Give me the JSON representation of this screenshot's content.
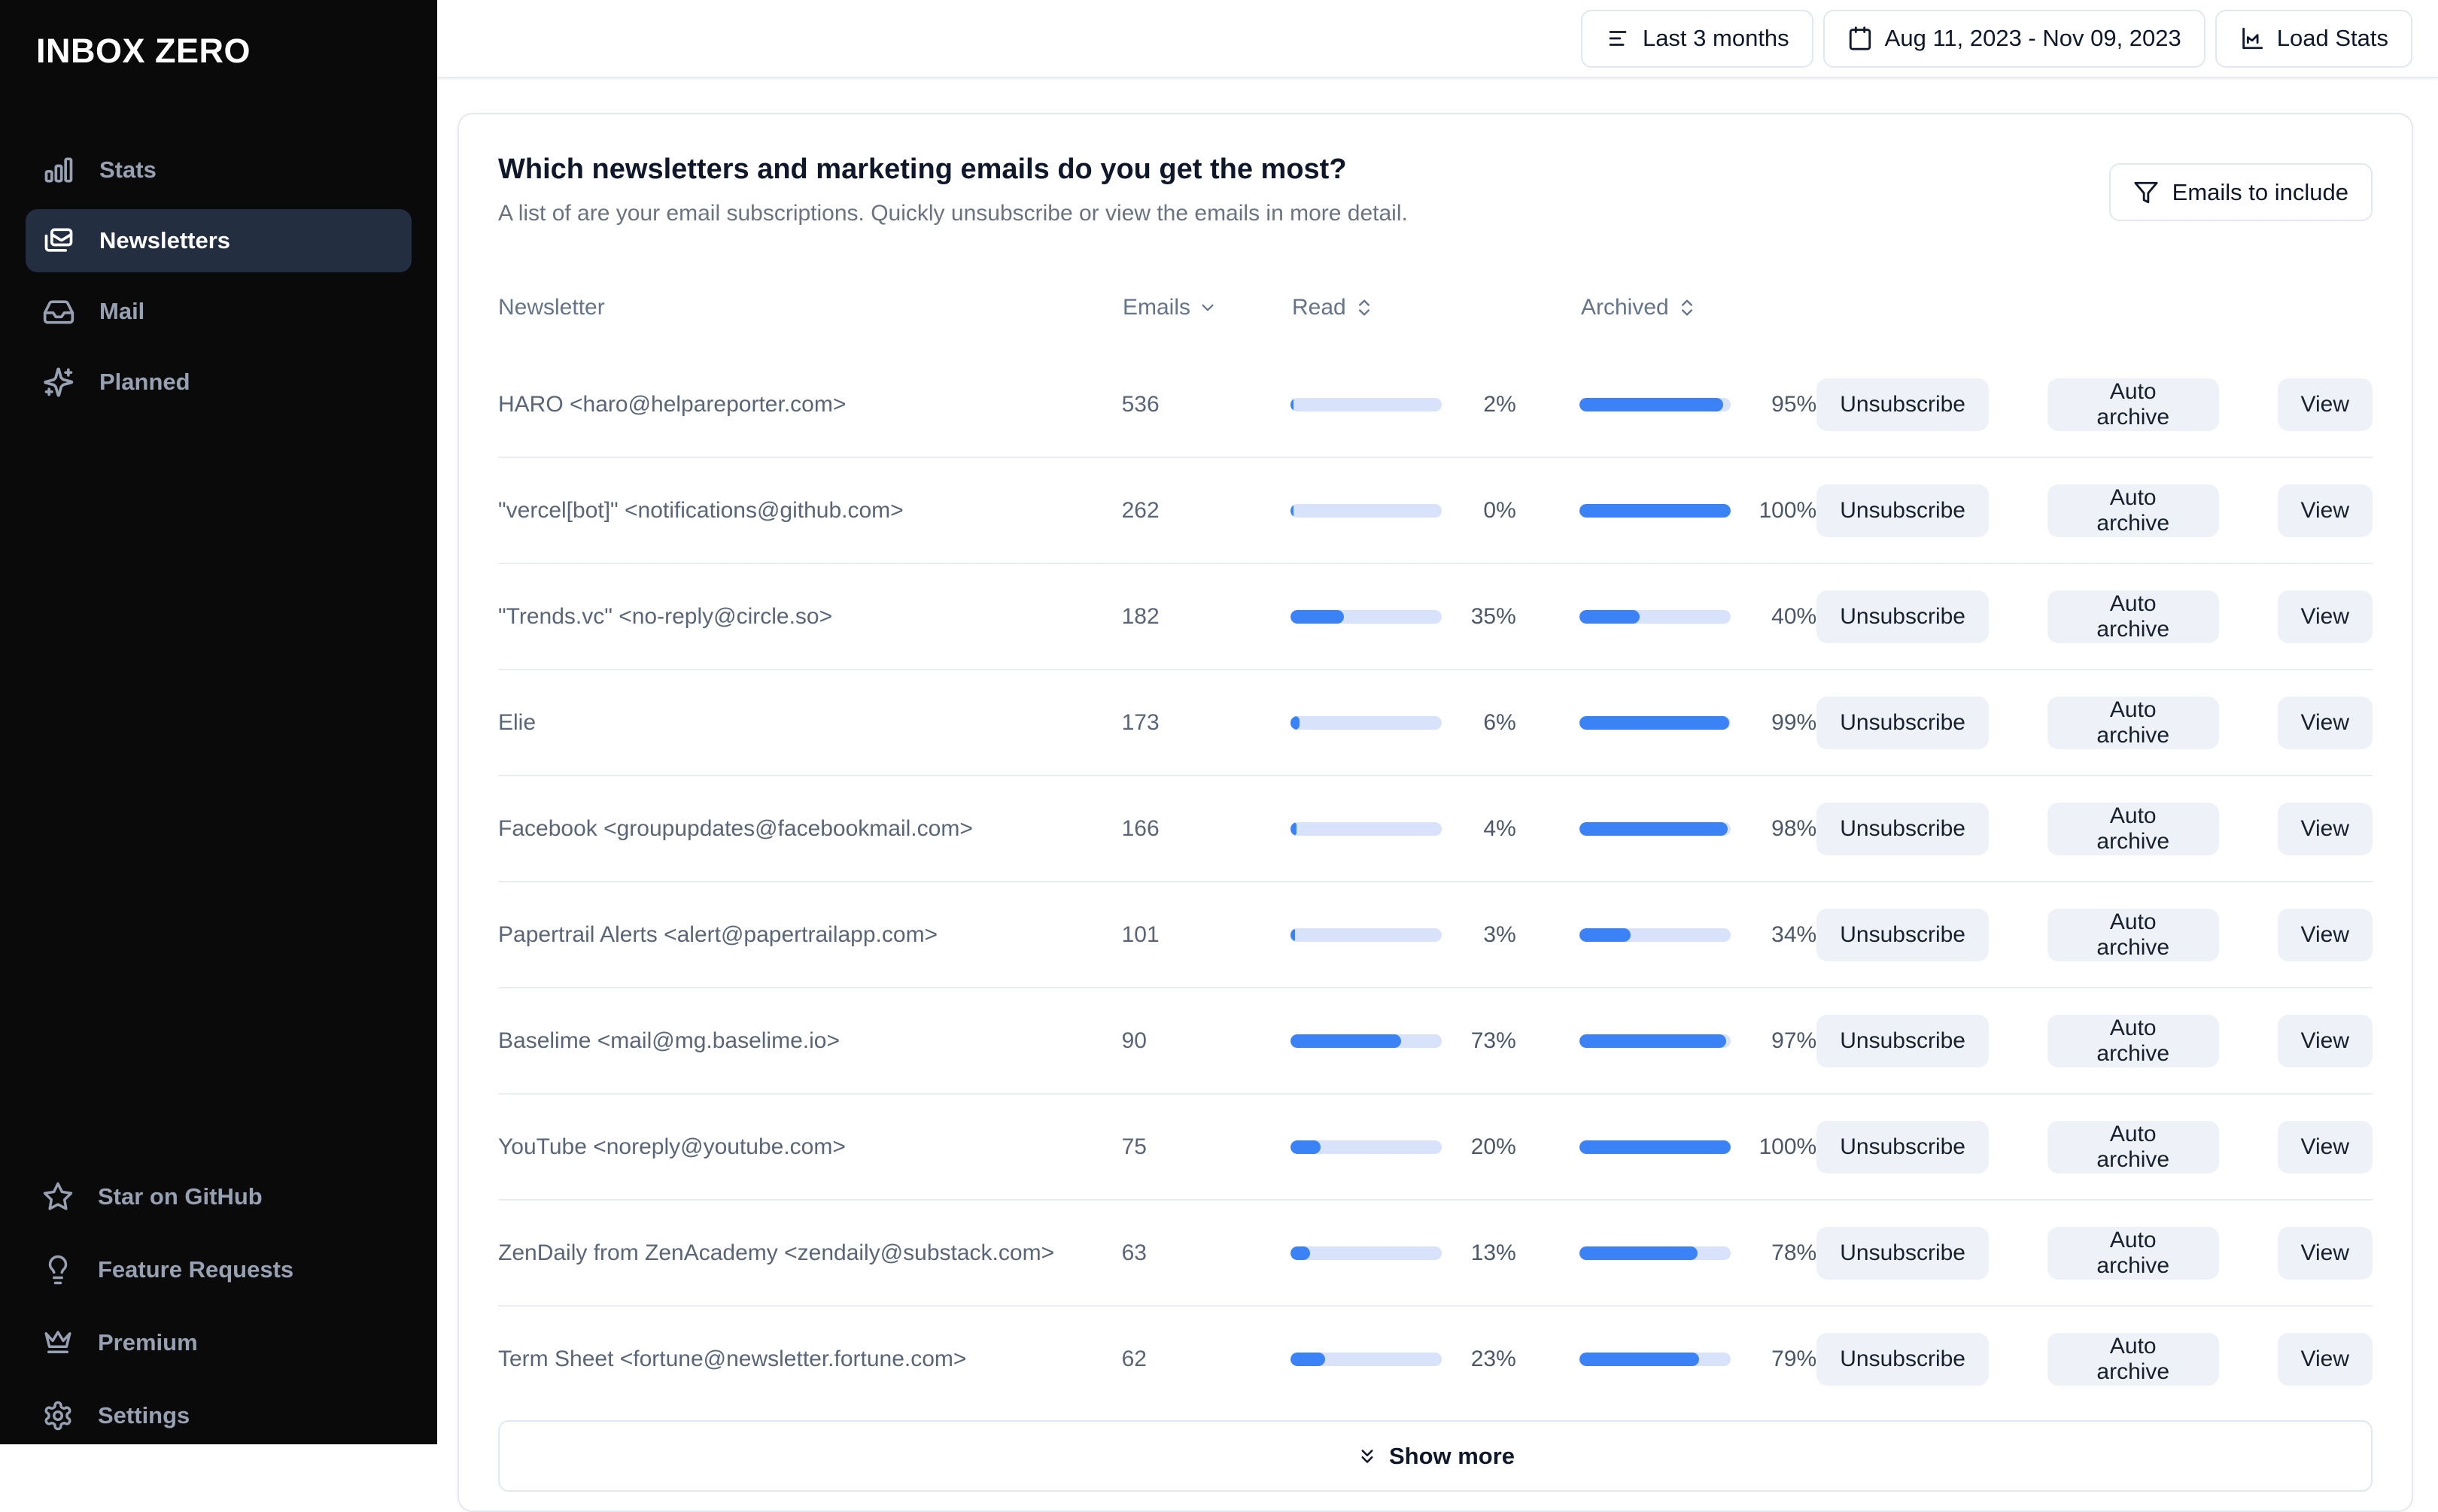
{
  "brand": "INBOX ZERO",
  "sidebar": {
    "items": [
      {
        "label": "Stats"
      },
      {
        "label": "Newsletters"
      },
      {
        "label": "Mail"
      },
      {
        "label": "Planned"
      }
    ],
    "footer_items": [
      {
        "label": "Star on GitHub"
      },
      {
        "label": "Feature Requests"
      },
      {
        "label": "Premium"
      },
      {
        "label": "Settings"
      }
    ]
  },
  "topbar": {
    "range_button": "Last 3 months",
    "date_button": "Aug 11, 2023 - Nov 09, 2023",
    "load_button": "Load Stats"
  },
  "card": {
    "title": "Which newsletters and marketing emails do you get the most?",
    "subtitle": "A list of are your email subscriptions. Quickly unsubscribe or view the emails in more detail.",
    "filter_button": "Emails to include"
  },
  "table": {
    "columns": [
      "Newsletter",
      "Emails",
      "Read",
      "Archived"
    ],
    "row_actions": [
      "Unsubscribe",
      "Auto archive",
      "View"
    ],
    "rows": [
      {
        "name": "HARO <haro@helpareporter.com>",
        "emails": 536,
        "read_pct": 2,
        "archived_pct": 95
      },
      {
        "name": "\"vercel[bot]\" <notifications@github.com>",
        "emails": 262,
        "read_pct": 0,
        "archived_pct": 100
      },
      {
        "name": "\"Trends.vc\" <no-reply@circle.so>",
        "emails": 182,
        "read_pct": 35,
        "archived_pct": 40
      },
      {
        "name": "Elie",
        "emails": 173,
        "read_pct": 6,
        "archived_pct": 99
      },
      {
        "name": "Facebook <groupupdates@facebookmail.com>",
        "emails": 166,
        "read_pct": 4,
        "archived_pct": 98
      },
      {
        "name": "Papertrail Alerts <alert@papertrailapp.com>",
        "emails": 101,
        "read_pct": 3,
        "archived_pct": 34
      },
      {
        "name": "Baselime <mail@mg.baselime.io>",
        "emails": 90,
        "read_pct": 73,
        "archived_pct": 97
      },
      {
        "name": "YouTube <noreply@youtube.com>",
        "emails": 75,
        "read_pct": 20,
        "archived_pct": 100
      },
      {
        "name": "ZenDaily from ZenAcademy <zendaily@substack.com>",
        "emails": 63,
        "read_pct": 13,
        "archived_pct": 78
      },
      {
        "name": "Term Sheet <fortune@newsletter.fortune.com>",
        "emails": 62,
        "read_pct": 23,
        "archived_pct": 79
      }
    ]
  },
  "show_more_label": "Show more",
  "colors": {
    "accent_blue": "#3b82f6",
    "bar_track": "#d9e2fb",
    "sidebar_bg": "#0a0a0b",
    "selected_item_bg": "#232e41",
    "border": "#e2e8f0"
  }
}
